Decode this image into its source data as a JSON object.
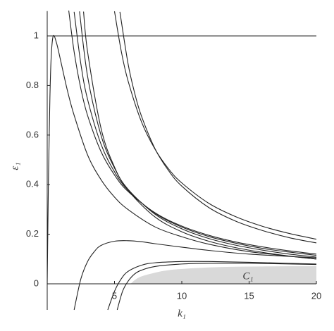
{
  "chart_data": {
    "type": "line",
    "x_label": "k₁",
    "y_label": "ε₁",
    "annotation": "C₁",
    "xlim": [
      0,
      20
    ],
    "ylim": [
      -0.105,
      1.1
    ],
    "xticks": [
      5,
      10,
      15,
      20
    ],
    "yticks": [
      0,
      0.2,
      0.4,
      0.6,
      0.8,
      1
    ],
    "reference_lines": [
      1
    ],
    "grid": false,
    "region": {
      "color": "#d9d9d9",
      "x": [
        6.2,
        6.5,
        7,
        8,
        9,
        10,
        12,
        14,
        16,
        18,
        20
      ],
      "values": [
        0,
        0.015,
        0.03,
        0.045,
        0.055,
        0.06,
        0.066,
        0.069,
        0.07,
        0.071,
        0.071
      ]
    },
    "series": [
      {
        "color": "#222",
        "x": [
          5,
          5.5,
          6,
          7,
          8,
          9,
          10,
          12,
          14,
          16,
          18,
          20
        ],
        "values": [
          1.099,
          0.939,
          0.82,
          0.654,
          0.544,
          0.465,
          0.407,
          0.325,
          0.271,
          0.232,
          0.203,
          0.18
        ]
      },
      {
        "color": "#222",
        "x": [
          5.4,
          6,
          6.5,
          7,
          8,
          9,
          10,
          12,
          14,
          16,
          18,
          20
        ],
        "values": [
          1.097,
          0.89,
          0.769,
          0.677,
          0.546,
          0.458,
          0.394,
          0.308,
          0.253,
          0.215,
          0.186,
          0.165
        ]
      },
      {
        "color": "#222",
        "x": [
          1.6,
          2,
          2.5,
          3,
          4,
          5,
          6,
          8,
          10,
          12,
          14,
          16,
          18,
          20
        ],
        "values": [
          1.102,
          0.936,
          0.787,
          0.679,
          0.533,
          0.439,
          0.373,
          0.287,
          0.233,
          0.196,
          0.169,
          0.149,
          0.133,
          0.12
        ]
      },
      {
        "color": "#222",
        "x": [
          2,
          2.5,
          3,
          4,
          5,
          6,
          8,
          10,
          12,
          14,
          16,
          18,
          20
        ],
        "values": [
          1.097,
          0.887,
          0.744,
          0.563,
          0.452,
          0.378,
          0.285,
          0.229,
          0.191,
          0.164,
          0.143,
          0.128,
          0.115
        ]
      },
      {
        "color": "#222",
        "x": [
          2.4,
          3,
          4,
          5,
          6,
          8,
          10,
          12,
          14,
          16,
          18,
          20
        ],
        "values": [
          1.099,
          0.837,
          0.599,
          0.467,
          0.382,
          0.281,
          0.222,
          0.183,
          0.156,
          0.136,
          0.12,
          0.108
        ]
      },
      {
        "color": "#222",
        "x": [
          2.7,
          3,
          4,
          5,
          6,
          8,
          10,
          12,
          14,
          16,
          18,
          20
        ],
        "values": [
          1.098,
          0.936,
          0.627,
          0.471,
          0.378,
          0.27,
          0.21,
          0.172,
          0.146,
          0.127,
          0.112,
          0.1
        ]
      },
      {
        "color": "#222",
        "x": [
          0,
          0.1,
          0.2,
          0.3,
          0.45,
          0.7,
          1,
          1.5,
          2,
          3,
          4,
          5,
          6,
          8,
          10,
          12,
          15,
          20
        ],
        "values": [
          0,
          0.45,
          0.75,
          0.92,
          1,
          0.97,
          0.9,
          0.78,
          0.68,
          0.52,
          0.42,
          0.35,
          0.3,
          0.23,
          0.19,
          0.16,
          0.13,
          0.1
        ]
      },
      {
        "color": "#222",
        "x": [
          2,
          2.5,
          3,
          3.5,
          4,
          5,
          6,
          7,
          8,
          10,
          12,
          15,
          20
        ],
        "values": [
          -0.105,
          0.02,
          0.09,
          0.13,
          0.155,
          0.172,
          0.174,
          0.17,
          0.162,
          0.148,
          0.135,
          0.12,
          0.105
        ]
      },
      {
        "color": "#222",
        "x": [
          4.5,
          5,
          5.5,
          6,
          7,
          8,
          10,
          12,
          15,
          20
        ],
        "values": [
          -0.105,
          -0.03,
          0.02,
          0.05,
          0.075,
          0.085,
          0.09,
          0.09,
          0.087,
          0.08
        ]
      },
      {
        "color": "#222",
        "x": [
          5.2,
          5.6,
          6,
          6.5,
          7,
          8,
          10,
          12,
          15,
          20
        ],
        "values": [
          -0.105,
          -0.03,
          0.01,
          0.04,
          0.055,
          0.07,
          0.08,
          0.083,
          0.083,
          0.078
        ]
      }
    ]
  }
}
